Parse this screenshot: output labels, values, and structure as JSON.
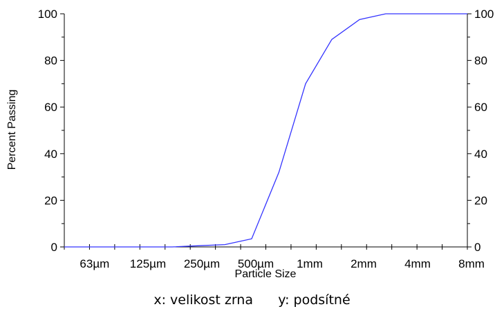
{
  "chart_data": {
    "type": "line",
    "xlabel": "Particle Size",
    "ylabel": "Percent Passing",
    "x_scale": "log2",
    "xlim": [
      "45µm",
      "8mm"
    ],
    "ylim": [
      0,
      100
    ],
    "grid": false,
    "x_tick_labels": [
      "63µm",
      "125µm",
      "250µm",
      "500µm",
      "1mm",
      "2mm",
      "4mm",
      "8mm"
    ],
    "y_tick_labels": [
      "0",
      "20",
      "40",
      "60",
      "80",
      "100"
    ],
    "y_right_tick_labels": [
      "0",
      "20",
      "40",
      "60",
      "80",
      "100"
    ],
    "line_color": "#3333ff",
    "series": [
      {
        "x": [
          "45µm",
          "63µm",
          "90µm",
          "125µm",
          "180µm",
          "250µm",
          "355µm",
          "500µm",
          "710µm",
          "1mm",
          "1.4mm",
          "2mm",
          "2.8mm",
          "4mm",
          "5.6mm",
          "8mm"
        ],
        "y": [
          0,
          0,
          0,
          0,
          0,
          0.5,
          1,
          3.5,
          32,
          70,
          89,
          97.5,
          100,
          100,
          100,
          100
        ]
      }
    ]
  },
  "caption": "x: velikost zrna      y: podsítné"
}
